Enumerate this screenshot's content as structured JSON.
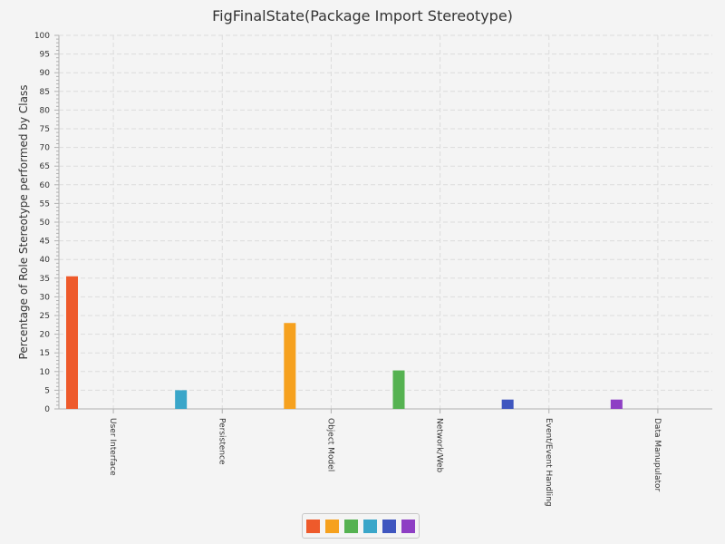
{
  "chart_data": {
    "type": "bar",
    "title": "FigFinalState(Package Import Stereotype)",
    "xlabel": "",
    "ylabel": "Percentage of Role Stereotype performed by Class",
    "categories": [
      "User Interface",
      "Persistence",
      "Object Model",
      "Network/Web",
      "Event/Event Handling",
      "Data Manupulator"
    ],
    "values": [
      35.5,
      5,
      23,
      10.3,
      2.5,
      2.5
    ],
    "colors": [
      "#ee5a2b",
      "#3aa6c9",
      "#f6a11e",
      "#55b251",
      "#3f56bf",
      "#8e3fc4"
    ],
    "ylim": [
      0,
      100
    ],
    "ytick_step": 5,
    "yticks": [
      "0",
      "5",
      "10",
      "15",
      "20",
      "25",
      "30",
      "35",
      "40",
      "45",
      "50",
      "55",
      "60",
      "65",
      "70",
      "75",
      "80",
      "85",
      "90",
      "95",
      "100"
    ],
    "grid": true,
    "legend": {
      "position": "bottom-center",
      "swatch_colors": [
        "#ee5a2b",
        "#f6a11e",
        "#55b251",
        "#3aa6c9",
        "#3f56bf",
        "#8e3fc4"
      ]
    }
  }
}
